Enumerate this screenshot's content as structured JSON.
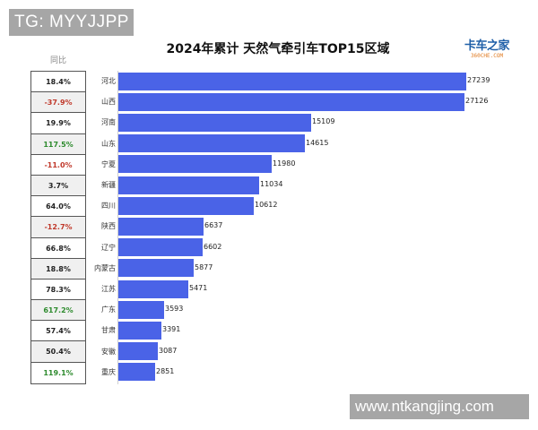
{
  "watermarks": {
    "top": "TG: MYYJJPP",
    "bottom": "www.ntkangjing.com"
  },
  "logo": {
    "line1": "卡车之家",
    "line2": "360CHE.COM"
  },
  "table": {
    "header": "同比"
  },
  "colors": {
    "bar": "#4a63e7",
    "negative": "#c0392b",
    "positive_high": "#2e8b2e",
    "neutral": "#222222"
  },
  "chart_data": {
    "type": "bar",
    "orientation": "horizontal",
    "title": "2024年累计 天然气牵引车TOP15区域",
    "xlabel": "",
    "ylabel": "",
    "grid": false,
    "categories": [
      "河北",
      "山西",
      "河南",
      "山东",
      "宁夏",
      "新疆",
      "四川",
      "陕西",
      "辽宁",
      "内蒙古",
      "江苏",
      "广东",
      "甘肃",
      "安徽",
      "重庆"
    ],
    "values": [
      27239,
      27126,
      15109,
      14615,
      11980,
      11034,
      10612,
      6637,
      6602,
      5877,
      5471,
      3593,
      3391,
      3087,
      2851
    ],
    "yoy": [
      "18.4%",
      "-37.9%",
      "19.9%",
      "117.5%",
      "-11.0%",
      "3.7%",
      "64.0%",
      "-12.7%",
      "66.8%",
      "18.8%",
      "78.3%",
      "617.2%",
      "57.4%",
      "50.4%",
      "119.1%"
    ],
    "yoy_color": [
      "neutral",
      "negative",
      "neutral",
      "positive_high",
      "negative",
      "neutral",
      "neutral",
      "negative",
      "neutral",
      "neutral",
      "neutral",
      "positive_high",
      "neutral",
      "neutral",
      "positive_high"
    ],
    "xlim": [
      0,
      27239
    ]
  },
  "rows": [
    {
      "prov": "河北",
      "value": "27239",
      "yoy": "18.4%"
    },
    {
      "prov": "山西",
      "value": "27126",
      "yoy": "-37.9%"
    },
    {
      "prov": "河南",
      "value": "15109",
      "yoy": "19.9%"
    },
    {
      "prov": "山东",
      "value": "14615",
      "yoy": "117.5%"
    },
    {
      "prov": "宁夏",
      "value": "11980",
      "yoy": "-11.0%"
    },
    {
      "prov": "新疆",
      "value": "11034",
      "yoy": "3.7%"
    },
    {
      "prov": "四川",
      "value": "10612",
      "yoy": "64.0%"
    },
    {
      "prov": "陕西",
      "value": "6637",
      "yoy": "-12.7%"
    },
    {
      "prov": "辽宁",
      "value": "6602",
      "yoy": "66.8%"
    },
    {
      "prov": "内蒙古",
      "value": "5877",
      "yoy": "18.8%"
    },
    {
      "prov": "江苏",
      "value": "5471",
      "yoy": "78.3%"
    },
    {
      "prov": "广东",
      "value": "3593",
      "yoy": "617.2%"
    },
    {
      "prov": "甘肃",
      "value": "3391",
      "yoy": "57.4%"
    },
    {
      "prov": "安徽",
      "value": "3087",
      "yoy": "50.4%"
    },
    {
      "prov": "重庆",
      "value": "2851",
      "yoy": "119.1%"
    }
  ]
}
